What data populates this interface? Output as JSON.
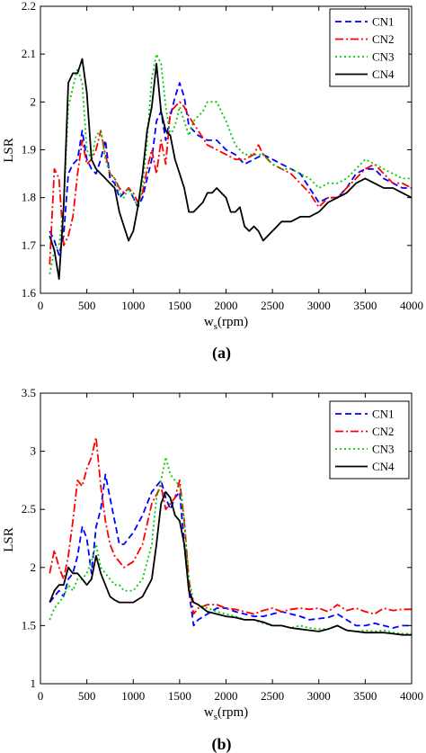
{
  "chart_data": [
    {
      "type": "line",
      "panel_label": "(a)",
      "xlabel": "w",
      "xlabel_sub": "s",
      "xlabel_unit": "(rpm)",
      "ylabel": "LSR",
      "xlim": [
        0,
        4000
      ],
      "ylim": [
        1.6,
        2.2
      ],
      "xticks": [
        0,
        500,
        1000,
        1500,
        2000,
        2500,
        3000,
        3500,
        4000
      ],
      "yticks": [
        1.6,
        1.7,
        1.8,
        1.9,
        2,
        2.1,
        2.2
      ],
      "ytick_labels": [
        "1.6",
        "1.7",
        "1.8",
        "1.9",
        "2",
        "2.1",
        "2.2"
      ],
      "legend_position": "top-right",
      "series": [
        {
          "name": "CN1",
          "color": "#0000ff",
          "dash": "7,4",
          "x": [
            100,
            150,
            200,
            250,
            300,
            350,
            400,
            450,
            500,
            550,
            600,
            650,
            700,
            750,
            800,
            850,
            900,
            950,
            1000,
            1050,
            1100,
            1150,
            1200,
            1250,
            1300,
            1350,
            1400,
            1450,
            1500,
            1550,
            1600,
            1700,
            1800,
            1900,
            2000,
            2100,
            2200,
            2300,
            2400,
            2500,
            2600,
            2700,
            2800,
            2900,
            3000,
            3100,
            3200,
            3300,
            3400,
            3500,
            3600,
            3700,
            3800,
            3900,
            4000
          ],
          "y": [
            1.73,
            1.71,
            1.68,
            1.72,
            1.85,
            1.87,
            1.88,
            1.94,
            1.88,
            1.86,
            1.85,
            1.88,
            1.92,
            1.84,
            1.83,
            1.8,
            1.81,
            1.82,
            1.8,
            1.78,
            1.8,
            1.84,
            1.88,
            1.96,
            1.98,
            1.92,
            1.97,
            2.01,
            2.04,
            2.01,
            1.95,
            1.93,
            1.92,
            1.92,
            1.9,
            1.89,
            1.87,
            1.88,
            1.89,
            1.88,
            1.87,
            1.86,
            1.85,
            1.82,
            1.79,
            1.8,
            1.8,
            1.82,
            1.85,
            1.86,
            1.86,
            1.84,
            1.83,
            1.82,
            1.82
          ]
        },
        {
          "name": "CN2",
          "color": "#ff0000",
          "dash": "9,3,2,3",
          "x": [
            100,
            150,
            200,
            250,
            300,
            350,
            400,
            450,
            500,
            550,
            600,
            650,
            700,
            750,
            800,
            850,
            900,
            950,
            1000,
            1050,
            1100,
            1150,
            1200,
            1250,
            1300,
            1350,
            1400,
            1450,
            1500,
            1550,
            1600,
            1700,
            1800,
            1900,
            2000,
            2100,
            2200,
            2300,
            2350,
            2400,
            2500,
            2600,
            2700,
            2800,
            2900,
            3000,
            3100,
            3200,
            3300,
            3400,
            3500,
            3600,
            3700,
            3800,
            3900,
            4000
          ],
          "y": [
            1.66,
            1.86,
            1.84,
            1.7,
            1.72,
            1.76,
            1.85,
            1.92,
            1.87,
            1.88,
            1.9,
            1.94,
            1.89,
            1.85,
            1.84,
            1.82,
            1.81,
            1.82,
            1.81,
            1.79,
            1.81,
            1.86,
            1.9,
            1.85,
            1.92,
            1.87,
            1.98,
            1.99,
            2.0,
            1.99,
            1.97,
            1.94,
            1.91,
            1.9,
            1.89,
            1.88,
            1.88,
            1.89,
            1.91,
            1.89,
            1.87,
            1.86,
            1.85,
            1.83,
            1.81,
            1.78,
            1.8,
            1.8,
            1.82,
            1.84,
            1.86,
            1.87,
            1.85,
            1.83,
            1.83,
            1.82
          ]
        },
        {
          "name": "CN3",
          "color": "#00cc00",
          "dash": "2,3",
          "x": [
            100,
            150,
            200,
            250,
            300,
            350,
            400,
            450,
            500,
            550,
            600,
            650,
            700,
            750,
            800,
            850,
            900,
            950,
            1000,
            1050,
            1100,
            1150,
            1200,
            1250,
            1300,
            1350,
            1400,
            1450,
            1500,
            1550,
            1600,
            1650,
            1700,
            1750,
            1800,
            1900,
            2000,
            2100,
            2200,
            2300,
            2400,
            2500,
            2600,
            2700,
            2800,
            2900,
            3000,
            3100,
            3200,
            3300,
            3400,
            3500,
            3600,
            3700,
            3800,
            3900,
            4000
          ],
          "y": [
            1.64,
            1.69,
            1.7,
            1.78,
            1.99,
            2.03,
            2.07,
            2.04,
            1.9,
            1.88,
            1.93,
            1.94,
            1.88,
            1.85,
            1.84,
            1.81,
            1.8,
            1.82,
            1.8,
            1.78,
            1.82,
            1.92,
            2.05,
            2.1,
            2.08,
            1.99,
            1.93,
            1.95,
            1.99,
            1.96,
            1.93,
            1.96,
            1.97,
            1.98,
            2.0,
            2.0,
            1.96,
            1.91,
            1.89,
            1.89,
            1.89,
            1.87,
            1.86,
            1.86,
            1.85,
            1.84,
            1.82,
            1.83,
            1.83,
            1.84,
            1.86,
            1.88,
            1.87,
            1.86,
            1.85,
            1.84,
            1.84
          ]
        },
        {
          "name": "CN4",
          "color": "#000000",
          "dash": "",
          "x": [
            100,
            150,
            200,
            250,
            300,
            350,
            400,
            450,
            500,
            550,
            600,
            650,
            700,
            750,
            800,
            850,
            900,
            950,
            1000,
            1050,
            1100,
            1150,
            1200,
            1250,
            1300,
            1350,
            1400,
            1450,
            1500,
            1550,
            1600,
            1650,
            1700,
            1750,
            1800,
            1850,
            1900,
            1950,
            2000,
            2050,
            2100,
            2150,
            2200,
            2250,
            2300,
            2350,
            2400,
            2500,
            2600,
            2700,
            2800,
            2900,
            3000,
            3100,
            3200,
            3300,
            3400,
            3500,
            3600,
            3700,
            3800,
            3900,
            4000
          ],
          "y": [
            1.72,
            1.69,
            1.63,
            1.78,
            2.04,
            2.06,
            2.06,
            2.09,
            2.02,
            1.88,
            1.86,
            1.85,
            1.84,
            1.83,
            1.82,
            1.77,
            1.74,
            1.71,
            1.73,
            1.78,
            1.85,
            1.94,
            1.99,
            2.08,
            1.98,
            1.94,
            1.93,
            1.88,
            1.85,
            1.82,
            1.77,
            1.77,
            1.78,
            1.79,
            1.81,
            1.81,
            1.82,
            1.81,
            1.8,
            1.77,
            1.77,
            1.78,
            1.74,
            1.73,
            1.74,
            1.73,
            1.71,
            1.73,
            1.75,
            1.75,
            1.76,
            1.76,
            1.77,
            1.79,
            1.8,
            1.81,
            1.83,
            1.84,
            1.83,
            1.82,
            1.82,
            1.81,
            1.8
          ]
        }
      ]
    },
    {
      "type": "line",
      "panel_label": "(b)",
      "xlabel": "w",
      "xlabel_sub": "s",
      "xlabel_unit": "(rpm)",
      "ylabel": "LSR",
      "xlim": [
        0,
        4000
      ],
      "ylim": [
        1,
        3.5
      ],
      "xticks": [
        0,
        500,
        1000,
        1500,
        2000,
        2500,
        3000,
        3500,
        4000
      ],
      "yticks": [
        1,
        1.5,
        2,
        2.5,
        3,
        3.5
      ],
      "ytick_labels": [
        "1",
        "1.5",
        "2",
        "2.5",
        "3",
        "3.5"
      ],
      "legend_position": "top-right",
      "series": [
        {
          "name": "CN1",
          "color": "#0000ff",
          "dash": "7,4",
          "x": [
            100,
            200,
            250,
            300,
            350,
            400,
            450,
            500,
            550,
            600,
            650,
            700,
            750,
            800,
            850,
            900,
            1000,
            1100,
            1200,
            1300,
            1350,
            1400,
            1450,
            1500,
            1550,
            1600,
            1650,
            1700,
            1800,
            1900,
            2000,
            2100,
            2200,
            2300,
            2400,
            2500,
            2600,
            2700,
            2800,
            2900,
            3000,
            3100,
            3200,
            3300,
            3400,
            3500,
            3600,
            3700,
            3800,
            3900,
            4000
          ],
          "y": [
            1.7,
            1.8,
            1.75,
            1.9,
            1.95,
            2.1,
            2.35,
            2.25,
            1.95,
            2.35,
            2.5,
            2.8,
            2.6,
            2.4,
            2.2,
            2.2,
            2.3,
            2.45,
            2.65,
            2.75,
            2.6,
            2.5,
            2.6,
            2.65,
            2.2,
            1.8,
            1.5,
            1.55,
            1.6,
            1.65,
            1.65,
            1.62,
            1.6,
            1.58,
            1.58,
            1.6,
            1.62,
            1.6,
            1.58,
            1.55,
            1.56,
            1.57,
            1.6,
            1.55,
            1.5,
            1.5,
            1.52,
            1.5,
            1.48,
            1.5,
            1.5
          ]
        },
        {
          "name": "CN2",
          "color": "#ff0000",
          "dash": "9,3,2,3",
          "x": [
            100,
            150,
            200,
            250,
            300,
            350,
            400,
            450,
            500,
            550,
            600,
            650,
            700,
            750,
            800,
            850,
            900,
            1000,
            1100,
            1200,
            1300,
            1350,
            1400,
            1450,
            1500,
            1550,
            1600,
            1650,
            1700,
            1800,
            1900,
            2000,
            2100,
            2200,
            2300,
            2400,
            2500,
            2600,
            2700,
            2800,
            2900,
            3000,
            3100,
            3200,
            3300,
            3400,
            3500,
            3600,
            3700,
            3800,
            3900,
            4000
          ],
          "y": [
            1.95,
            2.15,
            2.0,
            1.9,
            2.1,
            2.4,
            2.75,
            2.7,
            2.85,
            2.95,
            3.12,
            2.7,
            2.4,
            2.2,
            2.1,
            2.05,
            2.0,
            2.05,
            2.2,
            2.55,
            2.7,
            2.5,
            2.55,
            2.6,
            2.75,
            2.4,
            1.9,
            1.6,
            1.65,
            1.68,
            1.68,
            1.65,
            1.64,
            1.62,
            1.6,
            1.63,
            1.65,
            1.62,
            1.64,
            1.65,
            1.64,
            1.65,
            1.62,
            1.68,
            1.63,
            1.65,
            1.62,
            1.6,
            1.65,
            1.63,
            1.64,
            1.64
          ]
        },
        {
          "name": "CN3",
          "color": "#00cc00",
          "dash": "2,3",
          "x": [
            100,
            150,
            200,
            250,
            300,
            350,
            400,
            450,
            500,
            550,
            600,
            650,
            700,
            750,
            800,
            850,
            900,
            1000,
            1100,
            1200,
            1250,
            1300,
            1350,
            1400,
            1450,
            1500,
            1550,
            1600,
            1650,
            1700,
            1800,
            1900,
            2000,
            2100,
            2200,
            2300,
            2400,
            2500,
            2600,
            2700,
            2800,
            2900,
            3000,
            3100,
            3200,
            3300,
            3400,
            3500,
            3600,
            3700,
            3800,
            3900,
            4000
          ],
          "y": [
            1.55,
            1.65,
            1.7,
            1.75,
            1.85,
            1.8,
            1.9,
            1.9,
            1.95,
            2.05,
            2.2,
            2.0,
            1.95,
            1.9,
            1.85,
            1.85,
            1.8,
            1.8,
            1.9,
            2.2,
            2.6,
            2.75,
            2.95,
            2.8,
            2.75,
            2.7,
            2.4,
            1.9,
            1.7,
            1.68,
            1.65,
            1.62,
            1.6,
            1.58,
            1.55,
            1.55,
            1.52,
            1.5,
            1.5,
            1.48,
            1.5,
            1.48,
            1.47,
            1.47,
            1.5,
            1.46,
            1.45,
            1.46,
            1.45,
            1.46,
            1.44,
            1.43,
            1.43
          ]
        },
        {
          "name": "CN4",
          "color": "#000000",
          "dash": "",
          "x": [
            100,
            150,
            200,
            250,
            300,
            350,
            400,
            450,
            500,
            550,
            600,
            650,
            700,
            750,
            800,
            850,
            900,
            1000,
            1100,
            1200,
            1250,
            1300,
            1350,
            1400,
            1450,
            1500,
            1550,
            1600,
            1650,
            1700,
            1800,
            1900,
            2000,
            2100,
            2200,
            2300,
            2400,
            2500,
            2600,
            2700,
            2800,
            2900,
            3000,
            3100,
            3200,
            3300,
            3400,
            3500,
            3600,
            3700,
            3800,
            3900,
            4000
          ],
          "y": [
            1.7,
            1.8,
            1.85,
            1.85,
            2.0,
            1.95,
            1.95,
            1.9,
            1.85,
            1.9,
            2.1,
            1.95,
            1.85,
            1.75,
            1.72,
            1.7,
            1.7,
            1.7,
            1.75,
            1.9,
            2.2,
            2.55,
            2.65,
            2.6,
            2.45,
            2.4,
            2.2,
            1.8,
            1.7,
            1.68,
            1.62,
            1.6,
            1.58,
            1.57,
            1.55,
            1.55,
            1.53,
            1.5,
            1.5,
            1.48,
            1.47,
            1.46,
            1.45,
            1.47,
            1.5,
            1.46,
            1.45,
            1.44,
            1.44,
            1.44,
            1.43,
            1.42,
            1.42
          ]
        }
      ]
    }
  ]
}
